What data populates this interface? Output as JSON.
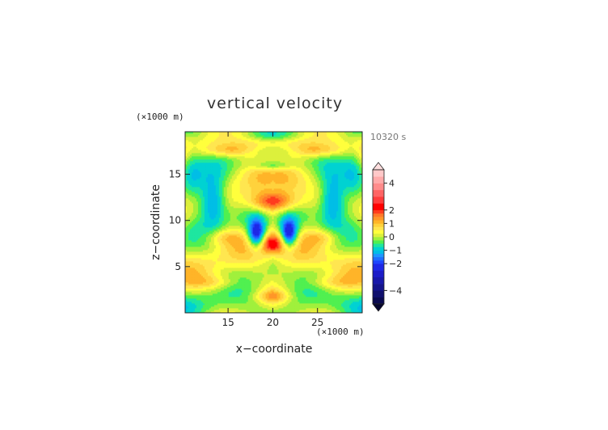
{
  "chart_data": {
    "type": "heatmap",
    "title": "vertical velocity",
    "xlabel": "x−coordinate",
    "ylabel": "z−coordinate",
    "x_unit": "(×1000 m)",
    "y_unit": "(×1000 m)",
    "time_label": "10320 s",
    "xlim": [
      10.2,
      30
    ],
    "ylim": [
      0,
      19.6
    ],
    "x_ticks": [
      "15",
      "20",
      "25"
    ],
    "x_tick_values": [
      15,
      20,
      25
    ],
    "y_ticks": [
      "5",
      "10",
      "15"
    ],
    "y_tick_values": [
      5,
      10,
      15
    ],
    "colorbar": {
      "tick_labels": [
        "4",
        "2",
        "1",
        "0",
        "−1",
        "−2",
        "−4"
      ],
      "tick_values": [
        4,
        2,
        1,
        0,
        -1,
        -2,
        -4
      ],
      "levels": [
        -5,
        -4.5,
        -4,
        -3.5,
        -3,
        -2.5,
        -2,
        -1.75,
        -1.5,
        -1.25,
        -1,
        -0.75,
        -0.5,
        -0.25,
        0,
        0.25,
        0.5,
        0.75,
        1,
        1.25,
        1.5,
        1.75,
        2,
        2.5,
        3,
        3.5,
        4,
        4.5,
        5
      ],
      "colors": [
        "#0a0a50",
        "#10106e",
        "#14148c",
        "#1818aa",
        "#1c1cc8",
        "#1e28e6",
        "#1e46ff",
        "#1e6eff",
        "#1e96ff",
        "#00bee6",
        "#00d2d2",
        "#1ee6a0",
        "#50f050",
        "#a0f03c",
        "#dcf03c",
        "#ffff3c",
        "#ffe650",
        "#ffd23c",
        "#ffb428",
        "#ff9628",
        "#ff7828",
        "#ff3c1e",
        "#ff0000",
        "#ff3c3c",
        "#ff6464",
        "#ff8c8c",
        "#ffaaaa",
        "#ffc8c8"
      ]
    },
    "field_features": [
      {
        "kind": "peak",
        "x": 20,
        "z": 12,
        "w": 1.3
      },
      {
        "kind": "peak",
        "x": 20,
        "z": 7.5,
        "w": 1.2
      },
      {
        "kind": "trough",
        "x": 18.2,
        "z": 8.6,
        "w": -1.8
      },
      {
        "kind": "trough",
        "x": 21.8,
        "z": 8.6,
        "w": -1.8
      },
      {
        "kind": "trough",
        "x": 13.2,
        "z": 12.2,
        "w": -1.4
      },
      {
        "kind": "trough",
        "x": 26.8,
        "z": 12.2,
        "w": -1.4
      },
      {
        "kind": "trough",
        "x": 20,
        "z": 16,
        "w": -0.6
      }
    ]
  }
}
